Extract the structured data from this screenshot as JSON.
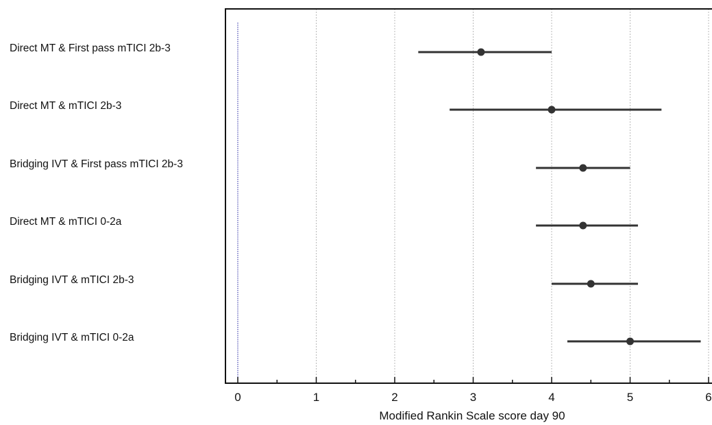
{
  "chart_data": {
    "type": "forest",
    "xlabel": "Modified Rankin Scale score day 90",
    "xlim": [
      -0.15,
      6.05
    ],
    "xticks": [
      0,
      1,
      2,
      3,
      4,
      5,
      6
    ],
    "minor_ticks": [
      0.5,
      1.5,
      2.5,
      3.5,
      4.5,
      5.5
    ],
    "reference_line": 0,
    "grid": "vertical",
    "rows": [
      {
        "label": "Direct MT & First pass mTICI 2b-3",
        "estimate": 3.1,
        "lower": 2.3,
        "upper": 4.0
      },
      {
        "label": "Direct MT & mTICI 2b-3",
        "estimate": 4.0,
        "lower": 2.7,
        "upper": 5.4
      },
      {
        "label": "Bridging IVT & First pass mTICI 2b-3",
        "estimate": 4.4,
        "lower": 3.8,
        "upper": 5.0
      },
      {
        "label": "Direct MT & mTICI 0-2a",
        "estimate": 4.4,
        "lower": 3.8,
        "upper": 5.1
      },
      {
        "label": "Bridging IVT & mTICI 2b-3",
        "estimate": 4.5,
        "lower": 4.0,
        "upper": 5.1
      },
      {
        "label": "Bridging IVT & mTICI 0-2a",
        "estimate": 5.0,
        "lower": 4.2,
        "upper": 5.9
      }
    ]
  }
}
